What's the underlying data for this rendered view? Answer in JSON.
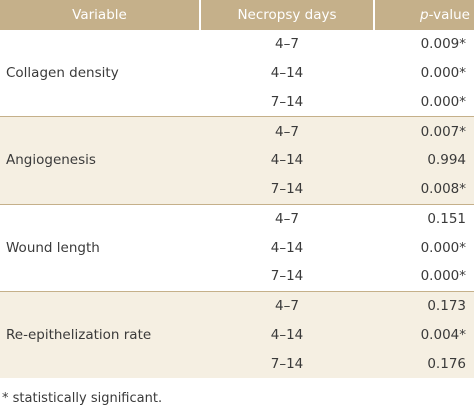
{
  "header": [
    "Variable",
    "Necropsy days",
    [
      "p",
      "-value"
    ]
  ],
  "groups": [
    {
      "variable": "Collagen density",
      "days": [
        "4–7",
        "4–14",
        "7–14"
      ],
      "p_values": [
        "0.009*",
        "0.000*",
        "0.000*"
      ]
    },
    {
      "variable": "Angiogenesis",
      "days": [
        "4–7",
        "4–14",
        "7–14"
      ],
      "p_values": [
        "0.007*",
        "0.994",
        "0.008*"
      ]
    },
    {
      "variable": "Wound length",
      "days": [
        "4–7",
        "4–14",
        "7–14"
      ],
      "p_values": [
        "0.151",
        "0.000*",
        "0.000*"
      ]
    },
    {
      "variable": "Re-epithelization rate",
      "days": [
        "4–7",
        "4–14",
        "7–14"
      ],
      "p_values": [
        "0.173",
        "0.004*",
        "0.176"
      ]
    }
  ],
  "footnote": "* statistically significant."
}
